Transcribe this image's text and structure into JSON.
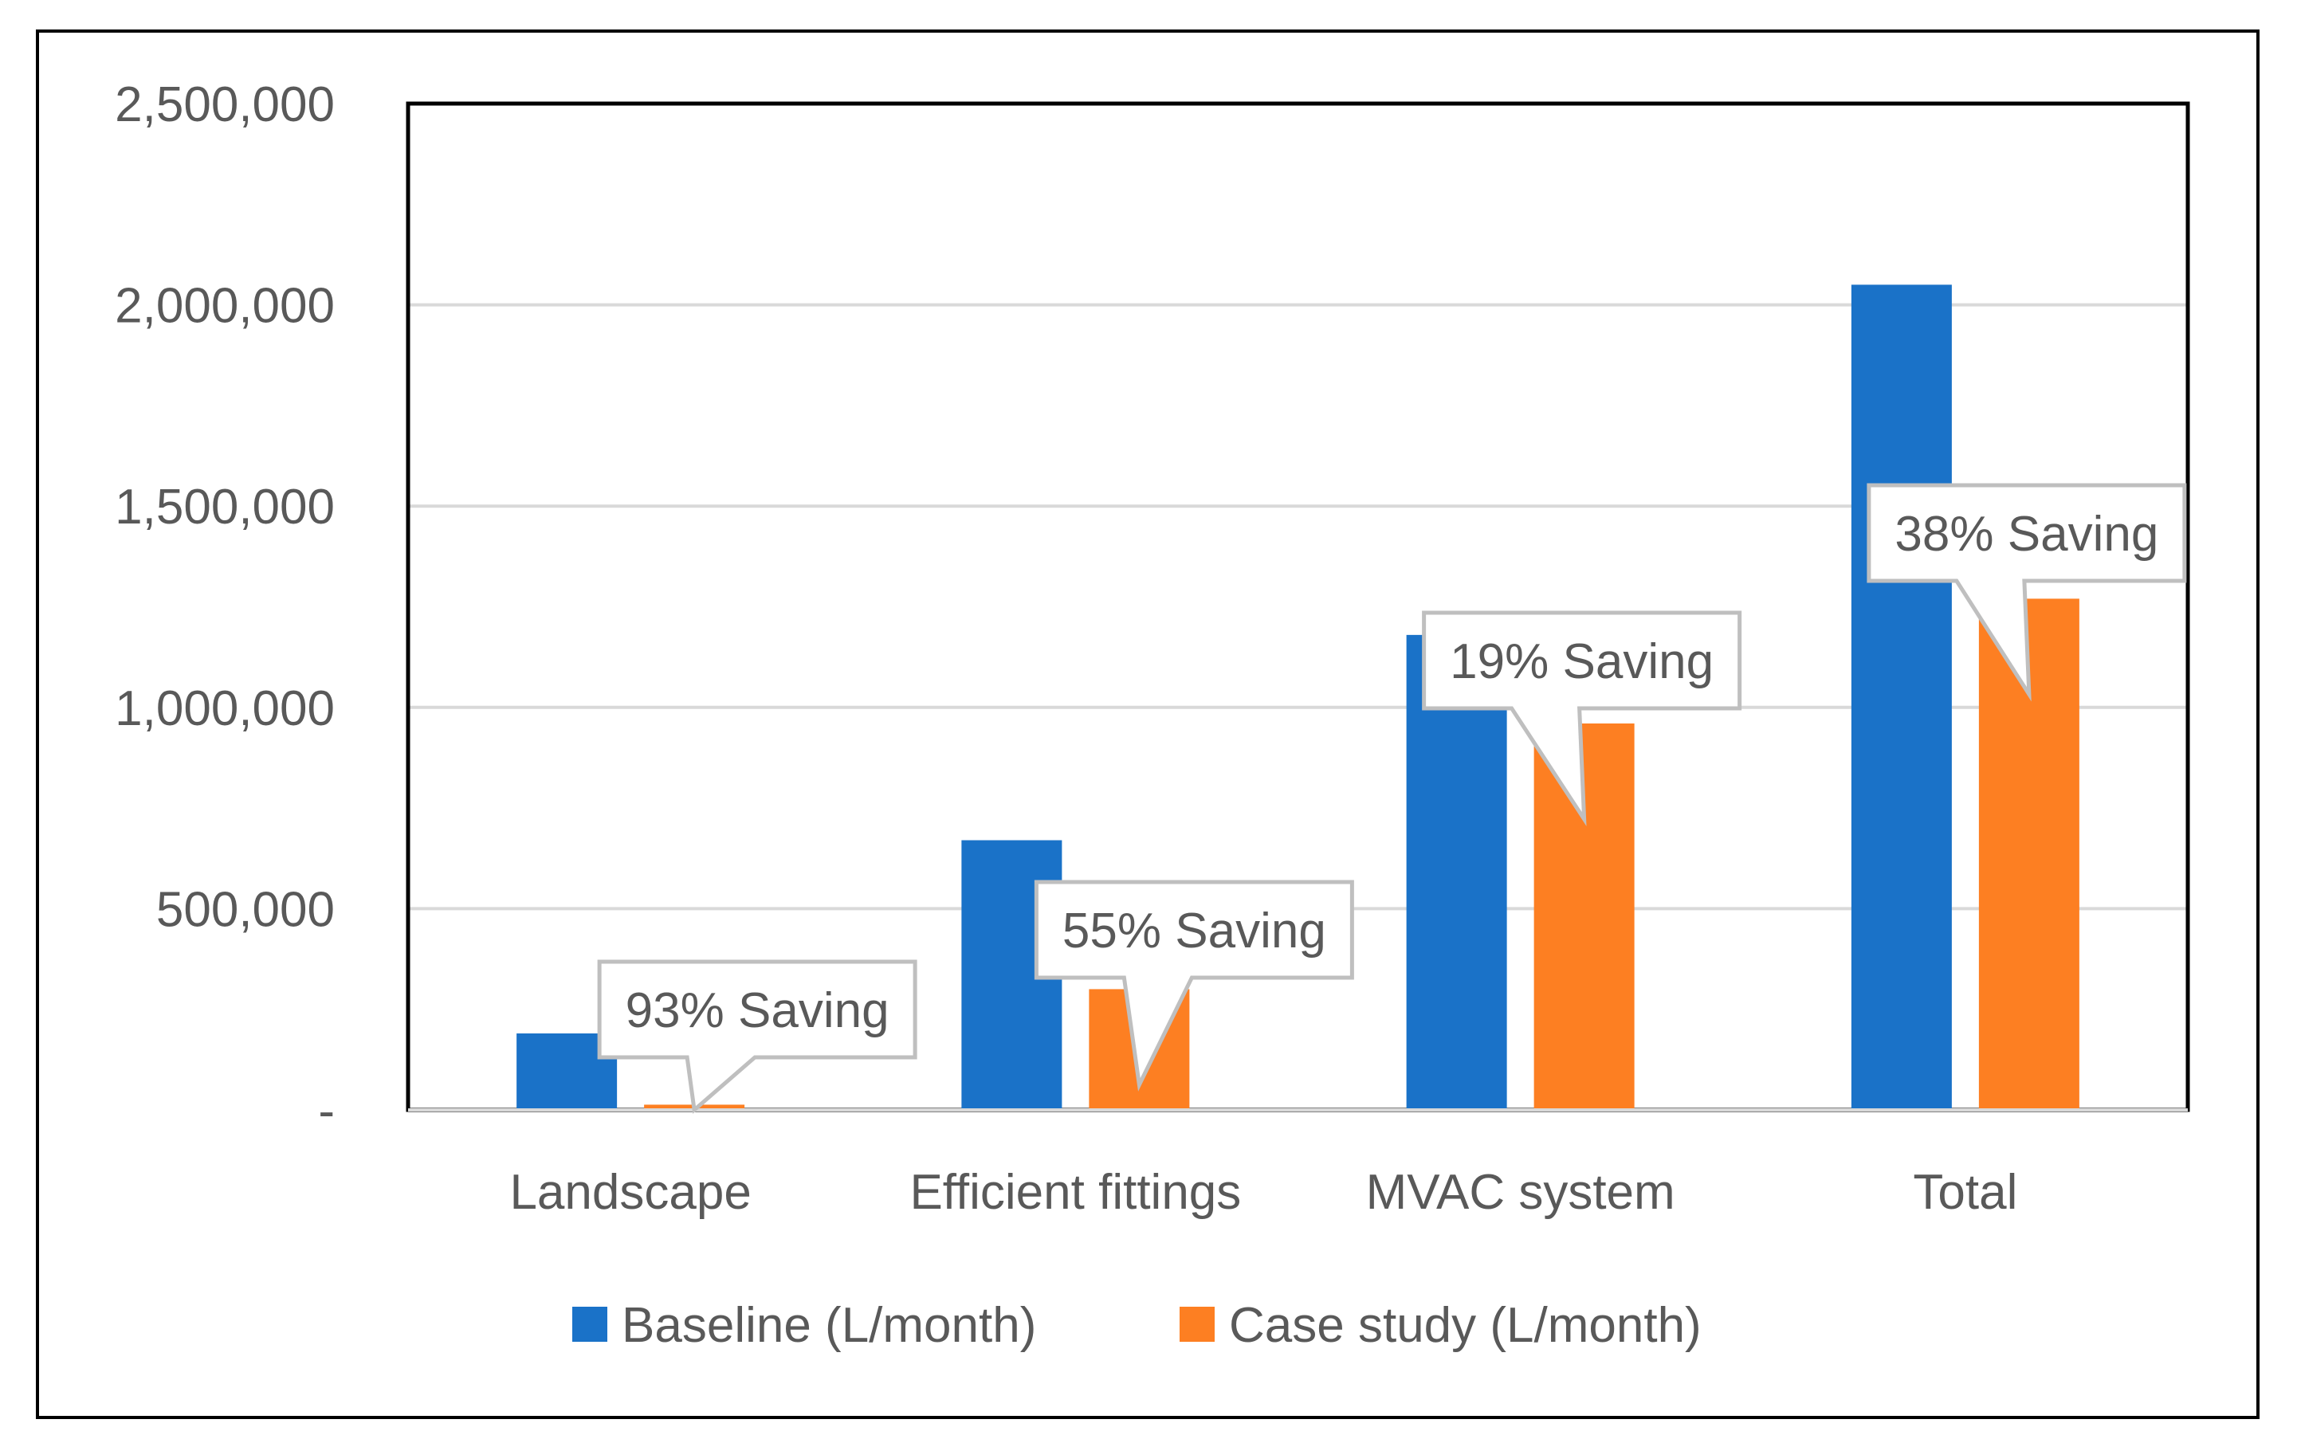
{
  "chart_data": {
    "type": "bar",
    "categories": [
      "Landscape",
      "Efficient fittings",
      "MVAC system",
      "Total"
    ],
    "series": [
      {
        "name": "Baseline (L/month)",
        "color": "#1A72C8",
        "values": [
          190000,
          670000,
          1180000,
          2050000
        ]
      },
      {
        "name": "Case study (L/month)",
        "color": "#FD7F22",
        "values": [
          13000,
          300000,
          960000,
          1270000
        ]
      }
    ],
    "ylim": [
      0,
      2500000
    ],
    "yticks": [
      {
        "value": 0,
        "label": "-"
      },
      {
        "value": 500000,
        "label": "500,000"
      },
      {
        "value": 1000000,
        "label": "1,000,000"
      },
      {
        "value": 1500000,
        "label": "1,500,000"
      },
      {
        "value": 2000000,
        "label": "2,000,000"
      },
      {
        "value": 2500000,
        "label": "2,500,000"
      }
    ],
    "grid": true,
    "legend_position": "bottom",
    "annotations": [
      {
        "text": "93% Saving",
        "category": "Landscape"
      },
      {
        "text": "55% Saving",
        "category": "Efficient fittings"
      },
      {
        "text": "19% Saving",
        "category": "MVAC system"
      },
      {
        "text": "38% Saving",
        "category": "Total"
      }
    ],
    "title": "",
    "xlabel": "",
    "ylabel": ""
  }
}
